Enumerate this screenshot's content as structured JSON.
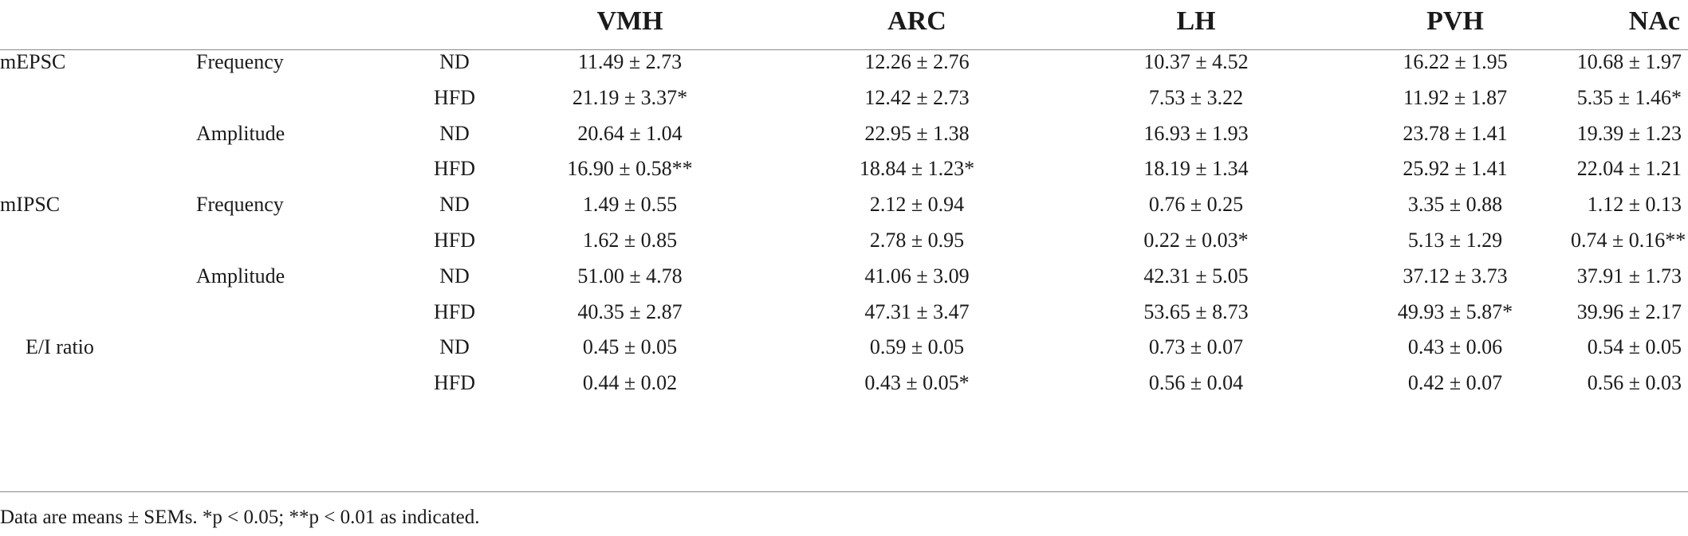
{
  "table": {
    "columns": [
      "VMH",
      "ARC",
      "LH",
      "PVH",
      "NAc"
    ],
    "rows": [
      {
        "measure": "mEPSC",
        "param": "Frequency",
        "group": "ND",
        "values": [
          "11.49 ± 2.73",
          "12.26 ± 2.76",
          "10.37 ± 4.52",
          "16.22 ± 1.95",
          "10.68 ± 1.97"
        ]
      },
      {
        "measure": "",
        "param": "",
        "group": "HFD",
        "values": [
          "21.19 ± 3.37*",
          "12.42 ± 2.73",
          "7.53 ± 3.22",
          "11.92 ± 1.87",
          "5.35 ± 1.46*"
        ]
      },
      {
        "measure": "",
        "param": "Amplitude",
        "group": "ND",
        "values": [
          "20.64 ± 1.04",
          "22.95 ± 1.38",
          "16.93 ± 1.93",
          "23.78 ± 1.41",
          "19.39 ± 1.23"
        ]
      },
      {
        "measure": "",
        "param": "",
        "group": "HFD",
        "values": [
          "16.90 ± 0.58**",
          "18.84 ± 1.23*",
          "18.19 ± 1.34",
          "25.92 ± 1.41",
          "22.04 ± 1.21"
        ]
      },
      {
        "measure": "mIPSC",
        "param": "Frequency",
        "group": "ND",
        "values": [
          "1.49 ± 0.55",
          "2.12 ± 0.94",
          "0.76 ± 0.25",
          "3.35 ± 0.88",
          "1.12 ± 0.13"
        ]
      },
      {
        "measure": "",
        "param": "",
        "group": "HFD",
        "values": [
          "1.62 ± 0.85",
          "2.78 ± 0.95",
          "0.22 ± 0.03*",
          "5.13 ± 1.29",
          "0.74 ± 0.16**"
        ]
      },
      {
        "measure": "",
        "param": "Amplitude",
        "group": "ND",
        "values": [
          "51.00 ± 4.78",
          "41.06 ± 3.09",
          "42.31 ± 5.05",
          "37.12 ± 3.73",
          "37.91 ± 1.73"
        ]
      },
      {
        "measure": "",
        "param": "",
        "group": "HFD",
        "values": [
          "40.35 ± 2.87",
          "47.31 ± 3.47",
          "53.65 ± 8.73",
          "49.93 ± 5.87*",
          "39.96 ± 2.17"
        ]
      },
      {
        "measure": "E/I ratio",
        "param": "",
        "group": "ND",
        "values": [
          "0.45 ± 0.05",
          "0.59 ± 0.05",
          "0.73 ± 0.07",
          "0.43 ± 0.06",
          "0.54 ± 0.05"
        ]
      },
      {
        "measure": "",
        "param": "",
        "group": "HFD",
        "values": [
          "0.44 ± 0.02",
          "0.43 ± 0.05*",
          "0.56 ± 0.04",
          "0.42 ± 0.07",
          "0.56 ± 0.03"
        ]
      }
    ]
  },
  "footnote": "Data are means ± SEMs. *p < 0.05; **p < 0.01 as indicated."
}
